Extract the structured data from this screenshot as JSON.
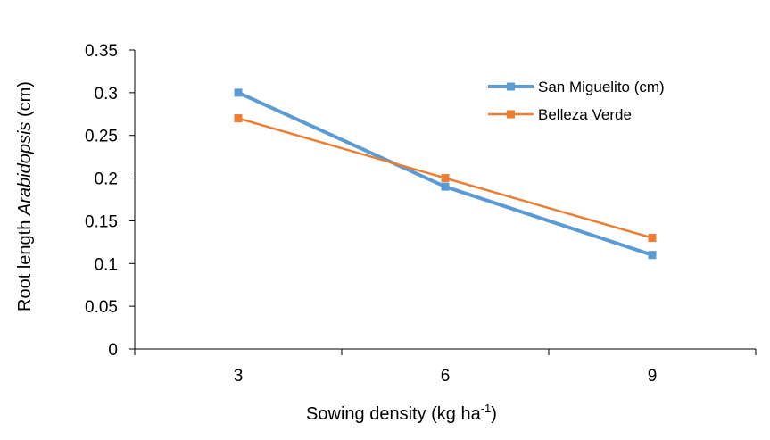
{
  "chart_data": {
    "type": "line",
    "title": "",
    "xlabel": "Sowing density (kg ha",
    "xlabel_sup": "-1",
    "xlabel_end": ")",
    "ylabel_prefix": "Root length ",
    "ylabel_italic": "Arabidopsis",
    "ylabel_suffix": " (cm)",
    "categories": [
      "3",
      "6",
      "9"
    ],
    "ylim": [
      0,
      0.35
    ],
    "yticks": [
      "0",
      "0.05",
      "0.1",
      "0.15",
      "0.2",
      "0.25",
      "0.3",
      "0.35"
    ],
    "legend_position": "top-right",
    "series": [
      {
        "name": "San Miguelito (cm)",
        "color": "#5B9BD5",
        "values": [
          0.3,
          0.19,
          0.11
        ]
      },
      {
        "name": "Belleza Verde",
        "color": "#ED7D31",
        "values": [
          0.27,
          0.2,
          0.13
        ]
      }
    ]
  }
}
